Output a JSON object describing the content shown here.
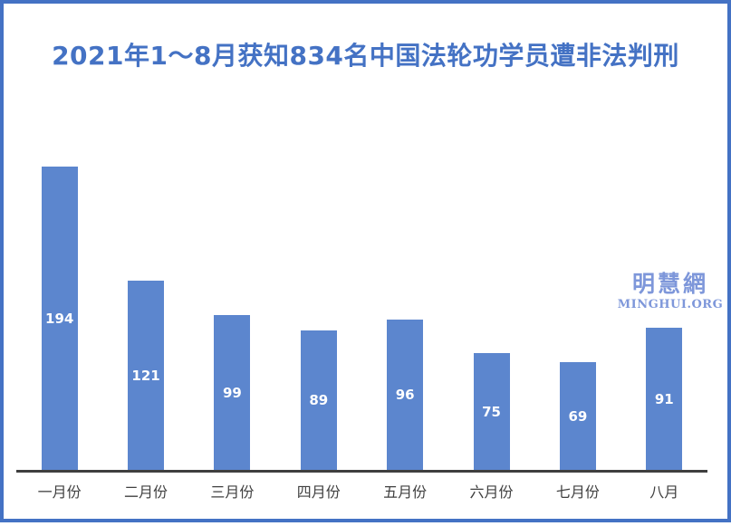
{
  "title": "2021年1～8月获知834名中国法轮功学员遭非法判刑",
  "watermark": {
    "cn": "明慧網",
    "en": "MINGHUI.ORG"
  },
  "colors": {
    "accent": "#4472C4",
    "bar": "#5C86CE",
    "axis": "#3F3F3F",
    "text": "#404040",
    "watermark": "#7E97DA",
    "value_label": "#FFFFFF"
  },
  "chart_data": {
    "type": "bar",
    "title": "2021年1～8月获知834名中国法轮功学员遭非法判刑",
    "categories": [
      "一月份",
      "二月份",
      "三月份",
      "四月份",
      "五月份",
      "六月份",
      "七月份",
      "八月"
    ],
    "values": [
      194,
      121,
      99,
      89,
      96,
      75,
      69,
      91
    ],
    "xlabel": "",
    "ylabel": "",
    "ylim": [
      0,
      200
    ],
    "grid": false,
    "legend": false,
    "data_labels": "inside-center",
    "bar_color": "#5C86CE",
    "data_label_color": "#FFFFFF"
  }
}
